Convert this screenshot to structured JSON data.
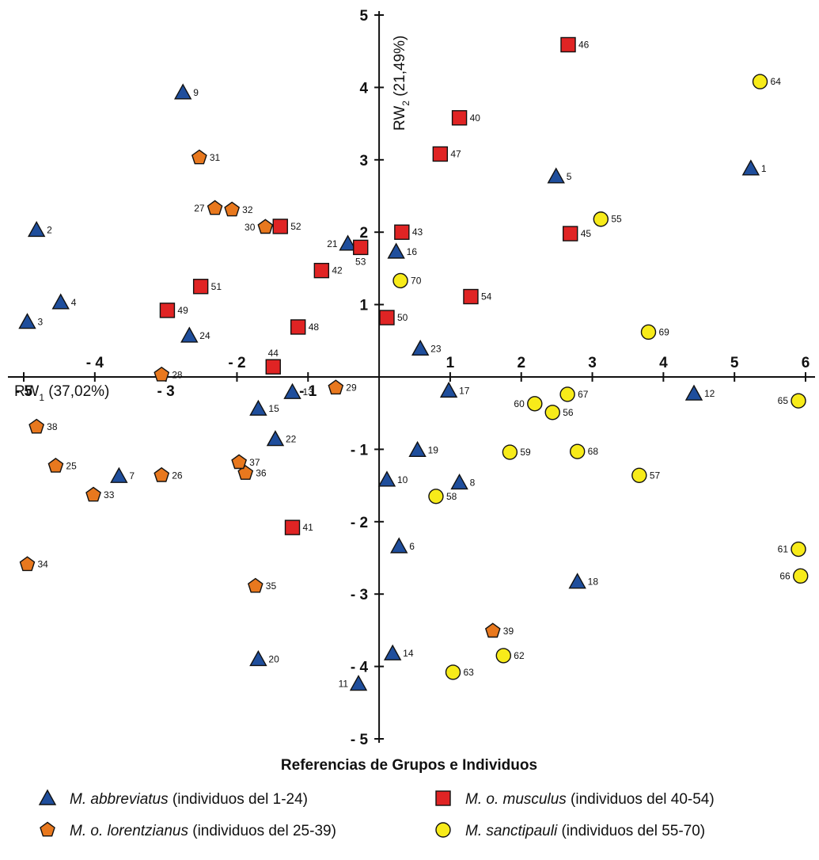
{
  "chart_data": {
    "type": "scatter",
    "xlabel": {
      "prefix": "RW",
      "sub": "1",
      "suffix": " (37,02%)"
    },
    "ylabel": {
      "prefix": "RW",
      "sub": "2",
      "suffix": " (21,49%)"
    },
    "xlim": [
      -5,
      6
    ],
    "ylim": [
      -5,
      5
    ],
    "x_ticks": [
      {
        "value": -5,
        "label": "- 5"
      },
      {
        "value": -4,
        "label": "- 4"
      },
      {
        "value": -3,
        "label": "- 3"
      },
      {
        "value": -2,
        "label": "- 2"
      },
      {
        "value": -1,
        "label": "- 1"
      },
      {
        "value": 1,
        "label": "1"
      },
      {
        "value": 2,
        "label": "2"
      },
      {
        "value": 3,
        "label": "3"
      },
      {
        "value": 4,
        "label": "4"
      },
      {
        "value": 5,
        "label": "5"
      },
      {
        "value": 6,
        "label": "6"
      }
    ],
    "y_ticks": [
      {
        "value": 5,
        "label": "5"
      },
      {
        "value": 4,
        "label": "4"
      },
      {
        "value": 3,
        "label": "3"
      },
      {
        "value": 2,
        "label": "2"
      },
      {
        "value": 1,
        "label": "1"
      },
      {
        "value": -1,
        "label": "- 1"
      },
      {
        "value": -2,
        "label": "- 2"
      },
      {
        "value": -3,
        "label": "- 3"
      },
      {
        "value": -4,
        "label": "- 4"
      },
      {
        "value": -5,
        "label": "- 5"
      }
    ],
    "grid": false,
    "legend_title": "Referencias de Grupos e Individuos",
    "legend_position": "bottom",
    "series": [
      {
        "name_italic": "M. abbreviatus",
        "name_rest": " (individuos del 1-24)",
        "marker": "triangle",
        "color": "#1F4E9C",
        "points": [
          {
            "id": "1",
            "x": 5.23,
            "y": 2.88
          },
          {
            "id": "2",
            "x": -4.82,
            "y": 2.03
          },
          {
            "id": "3",
            "x": -4.95,
            "y": 0.76
          },
          {
            "id": "4",
            "x": -4.48,
            "y": 1.03
          },
          {
            "id": "5",
            "x": 2.49,
            "y": 2.77
          },
          {
            "id": "6",
            "x": 0.28,
            "y": -2.34
          },
          {
            "id": "7",
            "x": -3.66,
            "y": -1.37
          },
          {
            "id": "8",
            "x": 1.13,
            "y": -1.46
          },
          {
            "id": "9",
            "x": -2.76,
            "y": 3.93
          },
          {
            "id": "10",
            "x": 0.11,
            "y": -1.42
          },
          {
            "id": "11",
            "x": -0.29,
            "y": -4.24
          },
          {
            "id": "12",
            "x": 4.43,
            "y": -0.23
          },
          {
            "id": "13",
            "x": -1.22,
            "y": -0.21
          },
          {
            "id": "14",
            "x": 0.19,
            "y": -3.82
          },
          {
            "id": "15",
            "x": -1.7,
            "y": -0.44
          },
          {
            "id": "16",
            "x": 0.24,
            "y": 1.73
          },
          {
            "id": "17",
            "x": 0.98,
            "y": -0.19
          },
          {
            "id": "18",
            "x": 2.79,
            "y": -2.83
          },
          {
            "id": "19",
            "x": 0.54,
            "y": -1.01
          },
          {
            "id": "20",
            "x": -1.7,
            "y": -3.9
          },
          {
            "id": "21",
            "x": -0.44,
            "y": 1.84
          },
          {
            "id": "22",
            "x": -1.46,
            "y": -0.86
          },
          {
            "id": "23",
            "x": 0.58,
            "y": 0.39
          },
          {
            "id": "24",
            "x": -2.67,
            "y": 0.57
          }
        ]
      },
      {
        "name_italic": "M. o. musculus",
        "name_rest": " (individuos del 40-54)",
        "marker": "square",
        "color": "#E02424",
        "points": [
          {
            "id": "40",
            "x": 1.13,
            "y": 3.58
          },
          {
            "id": "41",
            "x": -1.22,
            "y": -2.08
          },
          {
            "id": "42",
            "x": -0.81,
            "y": 1.47
          },
          {
            "id": "43",
            "x": 0.32,
            "y": 2.0
          },
          {
            "id": "44",
            "x": -1.49,
            "y": 0.14
          },
          {
            "id": "45",
            "x": 2.69,
            "y": 1.98
          },
          {
            "id": "46",
            "x": 2.66,
            "y": 4.59
          },
          {
            "id": "47",
            "x": 0.86,
            "y": 3.08
          },
          {
            "id": "48",
            "x": -1.14,
            "y": 0.69
          },
          {
            "id": "49",
            "x": -2.98,
            "y": 0.92
          },
          {
            "id": "50",
            "x": 0.11,
            "y": 0.82
          },
          {
            "id": "51",
            "x": -2.51,
            "y": 1.25
          },
          {
            "id": "52",
            "x": -1.39,
            "y": 2.08
          },
          {
            "id": "53",
            "x": -0.26,
            "y": 1.79
          },
          {
            "id": "54",
            "x": 1.29,
            "y": 1.11
          }
        ]
      },
      {
        "name_italic": "M. o. lorentzianus",
        "name_rest": " (individuos del 25-39)",
        "marker": "pentagon",
        "color": "#E8781E",
        "points": [
          {
            "id": "25",
            "x": -4.55,
            "y": -1.23
          },
          {
            "id": "26",
            "x": -3.06,
            "y": -1.36
          },
          {
            "id": "27",
            "x": -2.31,
            "y": 2.33
          },
          {
            "id": "28",
            "x": -3.06,
            "y": 0.03
          },
          {
            "id": "29",
            "x": -0.61,
            "y": -0.15
          },
          {
            "id": "30",
            "x": -1.6,
            "y": 2.07
          },
          {
            "id": "31",
            "x": -2.53,
            "y": 3.03
          },
          {
            "id": "32",
            "x": -2.07,
            "y": 2.31
          },
          {
            "id": "33",
            "x": -4.02,
            "y": -1.63
          },
          {
            "id": "34",
            "x": -4.95,
            "y": -2.59
          },
          {
            "id": "35",
            "x": -1.74,
            "y": -2.89
          },
          {
            "id": "36",
            "x": -1.88,
            "y": -1.33
          },
          {
            "id": "37",
            "x": -1.97,
            "y": -1.18
          },
          {
            "id": "38",
            "x": -4.82,
            "y": -0.69
          },
          {
            "id": "39",
            "x": 1.6,
            "y": -3.51
          }
        ]
      },
      {
        "name_italic": "M. sanctipauli",
        "name_rest": " (individuos del 55-70)",
        "marker": "circle",
        "color": "#F7EB1A",
        "points": [
          {
            "id": "55",
            "x": 3.12,
            "y": 2.18
          },
          {
            "id": "56",
            "x": 2.44,
            "y": -0.49
          },
          {
            "id": "57",
            "x": 3.66,
            "y": -1.36
          },
          {
            "id": "58",
            "x": 0.8,
            "y": -1.65
          },
          {
            "id": "59",
            "x": 1.84,
            "y": -1.04
          },
          {
            "id": "60",
            "x": 2.19,
            "y": -0.37
          },
          {
            "id": "61",
            "x": 5.9,
            "y": -2.38
          },
          {
            "id": "62",
            "x": 1.75,
            "y": -3.85
          },
          {
            "id": "63",
            "x": 1.04,
            "y": -4.08
          },
          {
            "id": "64",
            "x": 5.36,
            "y": 4.08
          },
          {
            "id": "65",
            "x": 5.9,
            "y": -0.33
          },
          {
            "id": "66",
            "x": 5.93,
            "y": -2.75
          },
          {
            "id": "67",
            "x": 2.65,
            "y": -0.24
          },
          {
            "id": "68",
            "x": 2.79,
            "y": -1.03
          },
          {
            "id": "69",
            "x": 3.79,
            "y": 0.62
          },
          {
            "id": "70",
            "x": 0.3,
            "y": 1.33
          }
        ]
      }
    ]
  }
}
